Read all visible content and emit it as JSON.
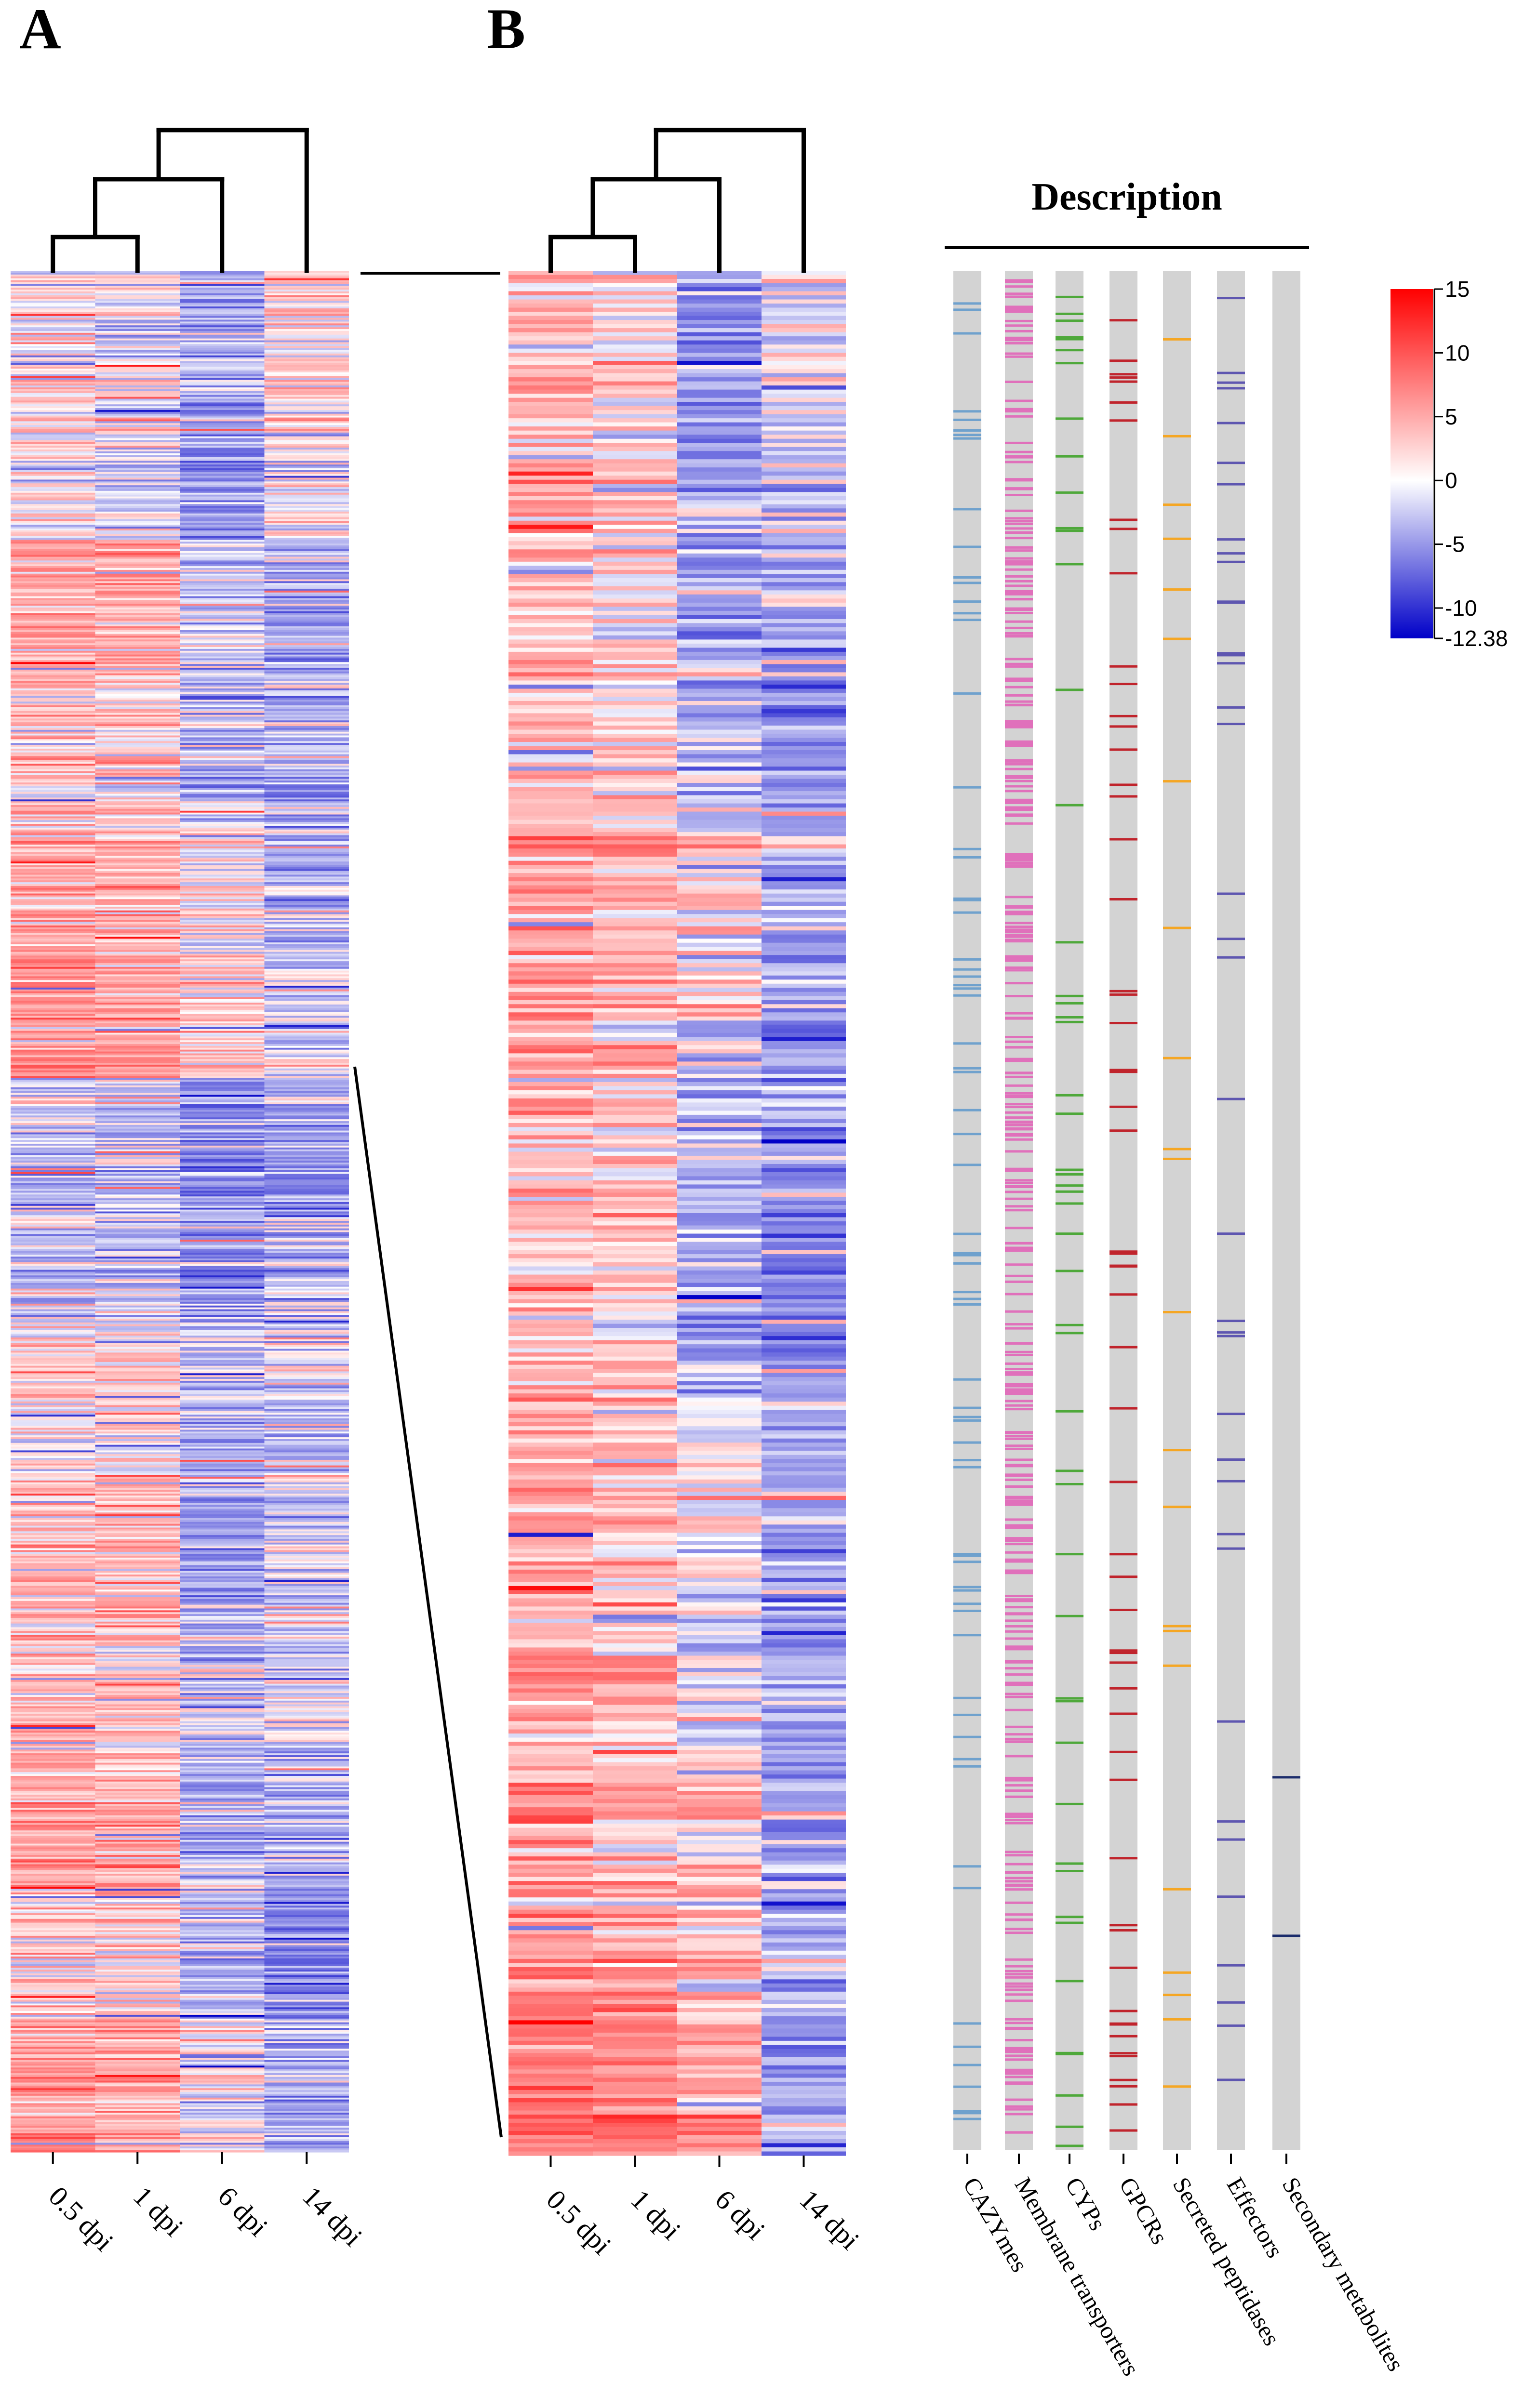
{
  "panels": {
    "a": "A",
    "b": "B"
  },
  "description_title": "Description",
  "chart_data": [
    {
      "type": "heatmap",
      "panel": "A",
      "columns": [
        "0.5 dpi",
        "1 dpi",
        "6 dpi",
        "14 dpi"
      ],
      "dendrogram": "((((0.5 dpi,1 dpi),6 dpi),14 dpi))",
      "row_count_approx": 1000,
      "value_range": [
        -12.38,
        15
      ],
      "column_mean_values": [
        1.5,
        1.0,
        -2.5,
        -1.5
      ],
      "row_band_means": [
        [
          0.5,
          -0.5,
          -3,
          1
        ],
        [
          1,
          0,
          -3.5,
          1
        ],
        [
          3,
          2.5,
          -1.5,
          -3
        ],
        [
          2,
          1.5,
          -2,
          -2
        ],
        [
          3,
          2.5,
          0.5,
          -2
        ],
        [
          4,
          3.5,
          1,
          -1
        ],
        [
          -1.5,
          -1.5,
          -4,
          -3.5
        ],
        [
          -0.5,
          -1,
          -3,
          -1.5
        ],
        [
          1,
          1,
          -2,
          -1
        ],
        [
          2.5,
          2,
          -3,
          -1
        ],
        [
          2,
          1.5,
          -1.5,
          -1
        ],
        [
          3.5,
          3,
          -2,
          -2
        ],
        [
          2,
          2,
          -2,
          -4
        ],
        [
          4,
          3.5,
          0,
          -3
        ]
      ]
    },
    {
      "type": "heatmap",
      "panel": "B",
      "columns": [
        "0.5 dpi",
        "1 dpi",
        "6 dpi",
        "14 dpi"
      ],
      "dendrogram": "((((0.5 dpi,1 dpi),6 dpi),14 dpi))",
      "row_count_approx": 460,
      "value_range": [
        -12.38,
        15
      ],
      "column_mean_values": [
        2.5,
        1.8,
        -1.5,
        -2.0
      ],
      "row_band_means": [
        [
          2,
          1,
          -4,
          -1
        ],
        [
          3,
          2,
          -3,
          -2
        ],
        [
          2,
          1,
          -2,
          -4
        ],
        [
          4,
          3,
          1,
          -2
        ],
        [
          3,
          2,
          -2,
          -3
        ],
        [
          2,
          1,
          -3,
          -5
        ],
        [
          4,
          3,
          1,
          -2
        ],
        [
          3,
          2,
          -1,
          -3
        ],
        [
          4,
          3,
          2,
          -3
        ],
        [
          6,
          5,
          3,
          -3
        ]
      ]
    },
    {
      "type": "annotation-tracks",
      "title": "Description",
      "tracks": [
        {
          "name": "CAZYmes",
          "color": "#6fa1cd",
          "count": 70
        },
        {
          "name": "Membrane transporters",
          "color": "#e070bb",
          "count": 330
        },
        {
          "name": "CYPs",
          "color": "#4ea83a",
          "count": 52
        },
        {
          "name": "GPCRs",
          "color": "#c0242c",
          "count": 58
        },
        {
          "name": "Secreted peptidases",
          "color": "#f5a623",
          "count": 22
        },
        {
          "name": "Effectors",
          "color": "#5e56b0",
          "count": 38
        },
        {
          "name": "Secondary metabolites",
          "color": "#1b2c6b",
          "count": 2
        }
      ],
      "track_background": "#d3d3d3"
    },
    {
      "type": "colorbar",
      "min": -12.38,
      "max": 15,
      "tick_labels": [
        "15",
        "10",
        "5",
        "0",
        "-5",
        "-10",
        "-12.38"
      ],
      "tick_values": [
        15,
        10,
        5,
        0,
        -5,
        -10,
        -12.38
      ],
      "colors": {
        "low": "#0000c8",
        "mid": "#ffffff",
        "high": "#ff0000"
      }
    }
  ]
}
